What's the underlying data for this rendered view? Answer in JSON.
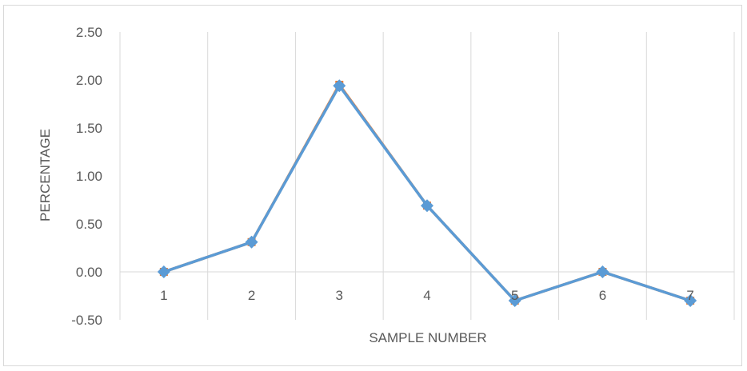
{
  "chart_data": {
    "type": "line",
    "xlabel": "SAMPLE NUMBER",
    "ylabel": "PERCENTAGE",
    "categories": [
      "1",
      "2",
      "3",
      "4",
      "5",
      "6",
      "7"
    ],
    "ylim": [
      -0.5,
      2.5
    ],
    "yticks": [
      "-0.50",
      "0.00",
      "0.50",
      "1.00",
      "1.50",
      "2.00",
      "2.50"
    ],
    "grid": "vertical",
    "series": [
      {
        "values": [
          0.0,
          0.31,
          1.95,
          0.69,
          -0.3,
          0.0,
          -0.3
        ],
        "color": "#ed7d31",
        "marker": "square"
      },
      {
        "values": [
          0.0,
          0.31,
          1.94,
          0.69,
          -0.3,
          0.0,
          -0.3
        ],
        "color": "#5b9bd5",
        "marker": "diamond"
      }
    ]
  }
}
